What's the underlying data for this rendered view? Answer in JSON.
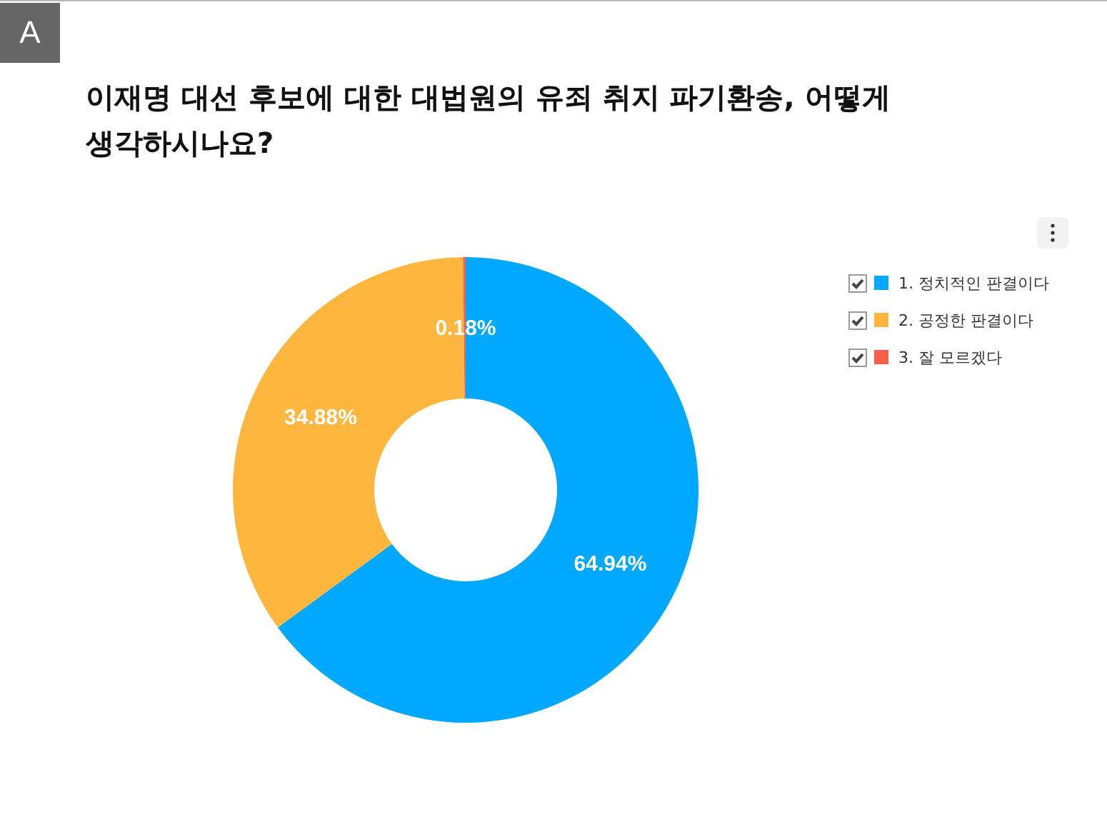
{
  "chart_data": {
    "type": "donut",
    "title": "이재명 대선 후보에 대한 대법원의 유죄 취지 파기환송, 어떻게 생각하시나요?",
    "categories": [
      "1. 정치적인 판결이다",
      "2. 공정한 판결이다",
      "3. 잘 모르겠다"
    ],
    "values": [
      64.94,
      34.88,
      0.18
    ],
    "colors": [
      "#00a8ff",
      "#ffb63f",
      "#f8604a"
    ],
    "value_labels": [
      "64.94%",
      "34.88%",
      "0.18%"
    ],
    "legend": "top right",
    "annotations": [
      "A"
    ]
  }
}
